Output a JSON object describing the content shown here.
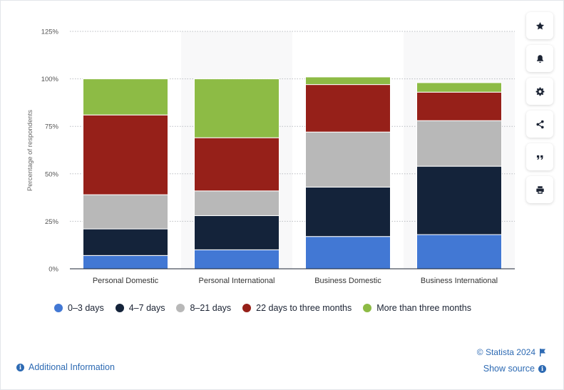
{
  "chart_data": {
    "type": "bar",
    "stacked": true,
    "categories": [
      "Personal Domestic",
      "Personal International",
      "Business Domestic",
      "Business International"
    ],
    "series": [
      {
        "name": "0-3 days",
        "values": [
          7,
          10,
          17,
          18
        ]
      },
      {
        "name": "4-7 days",
        "values": [
          14,
          18,
          26,
          36
        ]
      },
      {
        "name": "8-21 days",
        "values": [
          18,
          13,
          29,
          24
        ]
      },
      {
        "name": "22 days to three months",
        "values": [
          42,
          28,
          25,
          15
        ]
      },
      {
        "name": "More than three months",
        "values": [
          19,
          31,
          4,
          5
        ]
      }
    ],
    "ylabel": "Percentage of respondents",
    "ylim": [
      0,
      125
    ],
    "yticks": [
      0,
      25,
      50,
      75,
      100,
      125
    ],
    "ytick_labels": [
      "0%",
      "25%",
      "50%",
      "75%",
      "100%",
      "125%"
    ],
    "grid": "horizontal dotted",
    "legend_position": "bottom",
    "colors": [
      "#4278d4",
      "#14233a",
      "#b8b8b8",
      "#962019",
      "#8dbb45"
    ]
  },
  "legend": {
    "items": [
      {
        "label": "0–3 days",
        "color": "#4278d4"
      },
      {
        "label": "4–7 days",
        "color": "#14233a"
      },
      {
        "label": "8–21 days",
        "color": "#b8b8b8"
      },
      {
        "label": "22 days to three months",
        "color": "#962019"
      },
      {
        "label": "More than three months",
        "color": "#8dbb45"
      }
    ]
  },
  "footer": {
    "additional_info": "Additional Information",
    "copyright": "© Statista 2024",
    "show_source": "Show source"
  },
  "tools": [
    "star-icon",
    "bell-icon",
    "gear-icon",
    "share-icon",
    "quote-icon",
    "print-icon"
  ]
}
